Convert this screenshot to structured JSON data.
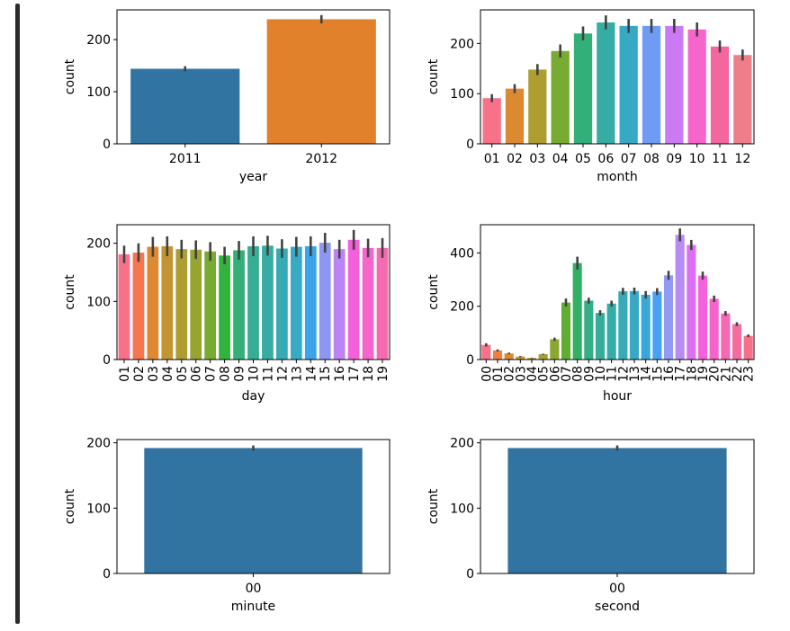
{
  "chart_data": [
    {
      "type": "bar",
      "xlabel": "year",
      "ylabel": "count",
      "categories": [
        "2011",
        "2012"
      ],
      "values": [
        144,
        239
      ],
      "errors": [
        5,
        8
      ],
      "colors": [
        "#3274a1",
        "#e1812c"
      ],
      "ylim": [
        0,
        257
      ],
      "yticks": [
        0,
        100,
        200
      ]
    },
    {
      "type": "bar",
      "xlabel": "month",
      "ylabel": "count",
      "categories": [
        "01",
        "02",
        "03",
        "04",
        "05",
        "06",
        "07",
        "08",
        "09",
        "10",
        "11",
        "12"
      ],
      "values": [
        91,
        110,
        148,
        185,
        220,
        242,
        235,
        235,
        235,
        228,
        194,
        177
      ],
      "errors": [
        8,
        9,
        11,
        13,
        14,
        14,
        14,
        14,
        14,
        14,
        12,
        11
      ],
      "colors": [
        "#f77189",
        "#dc8932",
        "#ae9d31",
        "#77ab31",
        "#33b07a",
        "#36ada4",
        "#38a9c5",
        "#6e9bf4",
        "#cc7af4",
        "#f565cc",
        "#f4669e",
        "#ee7e8a"
      ],
      "ylim": [
        0,
        267
      ],
      "yticks": [
        0,
        100,
        200
      ]
    },
    {
      "type": "bar",
      "xlabel": "day",
      "ylabel": "count",
      "categories": [
        "01",
        "02",
        "03",
        "04",
        "05",
        "06",
        "07",
        "08",
        "09",
        "10",
        "11",
        "12",
        "13",
        "14",
        "15",
        "16",
        "17",
        "18",
        "19"
      ],
      "values": [
        181,
        184,
        194,
        195,
        190,
        189,
        186,
        179,
        188,
        195,
        196,
        191,
        194,
        195,
        201,
        190,
        206,
        192,
        192
      ],
      "errors": [
        15,
        16,
        17,
        17,
        16,
        16,
        16,
        15,
        16,
        17,
        17,
        16,
        17,
        17,
        17,
        16,
        17,
        16,
        17
      ],
      "colors": [
        "#f77189",
        "#f7754f",
        "#dc8932",
        "#c39532",
        "#ae9d31",
        "#97a431",
        "#77ab31",
        "#31b33e",
        "#33b07a",
        "#35ae93",
        "#36ada4",
        "#37abb4",
        "#38aac5",
        "#3ba3ec",
        "#8e96f4",
        "#bb83f4",
        "#f45fdb",
        "#f565cc",
        "#f66bb0"
      ],
      "ylim": [
        0,
        232
      ],
      "yticks": [
        0,
        100,
        200
      ]
    },
    {
      "type": "bar",
      "xlabel": "hour",
      "ylabel": "count",
      "categories": [
        "00",
        "01",
        "02",
        "03",
        "04",
        "05",
        "06",
        "07",
        "08",
        "09",
        "10",
        "11",
        "12",
        "13",
        "14",
        "15",
        "16",
        "17",
        "18",
        "19",
        "20",
        "21",
        "22",
        "23"
      ],
      "values": [
        55,
        34,
        23,
        11,
        6,
        20,
        76,
        214,
        362,
        221,
        175,
        210,
        256,
        257,
        243,
        255,
        316,
        468,
        430,
        315,
        228,
        173,
        133,
        89
      ],
      "errors": [
        6,
        4,
        3,
        2,
        1,
        2,
        6,
        15,
        24,
        11,
        10,
        11,
        13,
        13,
        14,
        13,
        17,
        24,
        19,
        15,
        12,
        9,
        7,
        5
      ],
      "colors": [
        "#f77189",
        "#f57c3f",
        "#dc8932",
        "#c99332",
        "#b79a31",
        "#a4a031",
        "#8ba631",
        "#5fae31",
        "#32b166",
        "#34ae87",
        "#35ad9a",
        "#36aca9",
        "#37abb6",
        "#38a9c4",
        "#39a7d8",
        "#4aa0f4",
        "#939af4",
        "#b68cf4",
        "#dc6ff4",
        "#f561dd",
        "#f564c8",
        "#f667b4",
        "#f66c9f",
        "#f7708a"
      ],
      "ylim": [
        0,
        506
      ],
      "yticks": [
        0,
        200,
        400
      ]
    },
    {
      "type": "bar",
      "xlabel": "minute",
      "ylabel": "count",
      "categories": [
        "00"
      ],
      "values": [
        192
      ],
      "errors": [
        4
      ],
      "colors": [
        "#3274a1"
      ],
      "ylim": [
        0,
        205
      ],
      "yticks": [
        0,
        100,
        200
      ]
    },
    {
      "type": "bar",
      "xlabel": "second",
      "ylabel": "count",
      "categories": [
        "00"
      ],
      "values": [
        192
      ],
      "errors": [
        4
      ],
      "colors": [
        "#3274a1"
      ],
      "ylim": [
        0,
        205
      ],
      "yticks": [
        0,
        100,
        200
      ]
    }
  ]
}
